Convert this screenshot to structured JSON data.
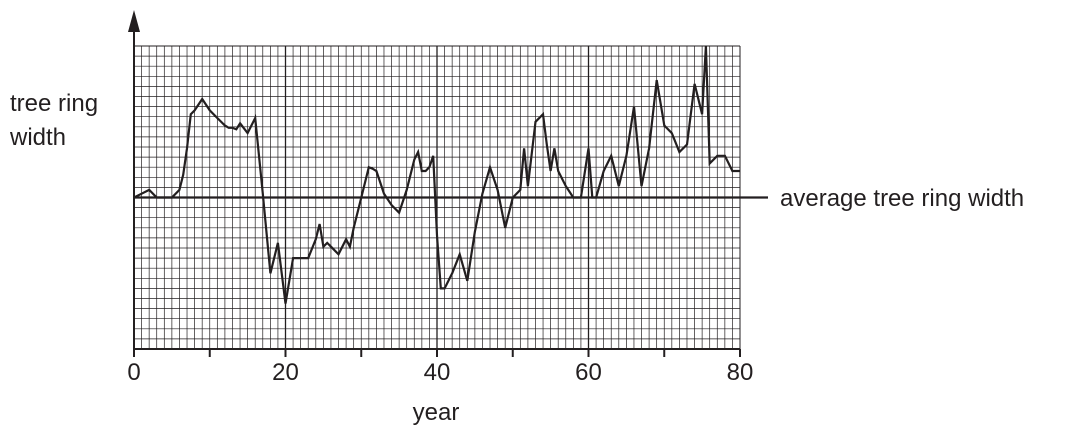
{
  "chart_data": {
    "type": "line",
    "title": "",
    "xlabel": "year",
    "ylabel": "tree ring width",
    "xlim": [
      0,
      80
    ],
    "ylim": [
      -20,
      20
    ],
    "x_ticks": [
      0,
      20,
      40,
      60,
      80
    ],
    "grid": true,
    "y_tick_labels_shown": false,
    "reference_line": {
      "y": 0,
      "label": "average tree ring width"
    },
    "series": [
      {
        "x": [
          0,
          1,
          2,
          3,
          4,
          5,
          6,
          6.5,
          7,
          7.5,
          8,
          9,
          10,
          11,
          12,
          12.5,
          13,
          13.5,
          14,
          15,
          16,
          17,
          18,
          19,
          20,
          21,
          22,
          23,
          24,
          24.5,
          25,
          25.5,
          26,
          27,
          28,
          28.5,
          29,
          30,
          31,
          31.5,
          32,
          33,
          34,
          35,
          36,
          37,
          37.5,
          38,
          38.5,
          39,
          39.5,
          40,
          40.5,
          41,
          42,
          43,
          44,
          45,
          46,
          47,
          47.5,
          48,
          49,
          50,
          51,
          51.5,
          52,
          53,
          54,
          54.5,
          55,
          55.5,
          56,
          57,
          58,
          59,
          60,
          60.5,
          61,
          62,
          63,
          64,
          65,
          66,
          67,
          68,
          69,
          70,
          71,
          72,
          73,
          74,
          75,
          75.5,
          76,
          77,
          78,
          79,
          80
        ],
        "y": [
          0,
          0.5,
          1,
          0,
          0,
          0,
          1,
          3,
          6.5,
          11,
          11.5,
          13,
          11.5,
          10.5,
          9.5,
          9.2,
          9.2,
          9,
          9.8,
          8.5,
          10.5,
          0.5,
          -10,
          -6,
          -14,
          -8,
          -8,
          -8,
          -5.5,
          -3.5,
          -6.5,
          -6,
          -6.5,
          -7.5,
          -5.5,
          -6.5,
          -4,
          0,
          4,
          3.8,
          3.5,
          0.5,
          -1,
          -2,
          1,
          5,
          6,
          3.5,
          3.5,
          4,
          5.5,
          -5,
          -12,
          -12,
          -10,
          -7.5,
          -11,
          -4.5,
          0.5,
          4,
          2.5,
          1,
          -4,
          0,
          1,
          6.5,
          1.5,
          10,
          11,
          7,
          3.5,
          6.5,
          3.5,
          1.5,
          0,
          0,
          6.5,
          0,
          0,
          3.5,
          5.5,
          1.5,
          5.5,
          12,
          1.5,
          6.5,
          15.5,
          9.5,
          8.5,
          6,
          7,
          15,
          11,
          20,
          4.5,
          5.5,
          5.5,
          3.5,
          3.5
        ]
      }
    ]
  }
}
